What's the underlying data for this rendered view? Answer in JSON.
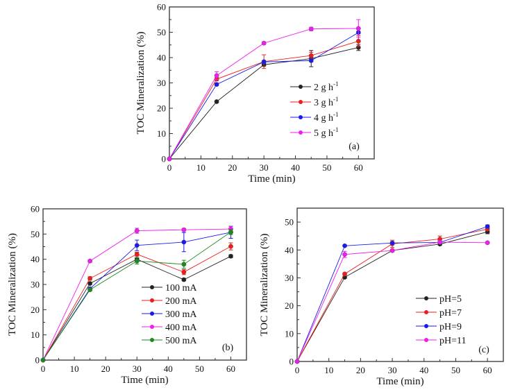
{
  "chart_data": [
    {
      "type": "line",
      "panel": "(a)",
      "title": "",
      "xlabel": "Time (min)",
      "ylabel": "TOC Mineralization (%)",
      "xlim": [
        0,
        65
      ],
      "ylim": [
        0,
        60
      ],
      "xticks": [
        0,
        10,
        20,
        30,
        40,
        50,
        60
      ],
      "yticks": [
        0,
        10,
        20,
        30,
        40,
        50,
        60
      ],
      "legend_position": "center-right",
      "x": [
        0,
        15,
        30,
        45,
        60
      ],
      "series": [
        {
          "name": "2 g h",
          "sup": "-1",
          "color": "#222222",
          "values": [
            0,
            22.6,
            37.2,
            39.6,
            44.0
          ],
          "errors": [
            0,
            0.4,
            0.5,
            3.2,
            1.2
          ]
        },
        {
          "name": "3 g h",
          "sup": "-1",
          "color": "#ee1c1c",
          "values": [
            0,
            31.5,
            38.4,
            40.8,
            46.5
          ],
          "errors": [
            0,
            0.6,
            2.7,
            1.3,
            2.2
          ]
        },
        {
          "name": "4 g h",
          "sup": "-1",
          "color": "#1a1aee",
          "values": [
            0,
            29.4,
            38.3,
            38.8,
            49.9
          ],
          "errors": [
            0,
            0.5,
            0.5,
            0.5,
            0.5
          ]
        },
        {
          "name": "5 g h",
          "sup": "-1",
          "color": "#ee1cee",
          "values": [
            0,
            32.9,
            45.7,
            51.3,
            51.5
          ],
          "errors": [
            0,
            1.5,
            0.5,
            0.7,
            3.5
          ]
        }
      ]
    },
    {
      "type": "line",
      "panel": "(b)",
      "title": "",
      "xlabel": "Time (min)",
      "ylabel": "TOC Mineralization (%)",
      "xlim": [
        0,
        65
      ],
      "ylim": [
        0,
        60
      ],
      "xticks": [
        0,
        10,
        20,
        30,
        40,
        50,
        60
      ],
      "yticks": [
        0,
        10,
        20,
        30,
        40,
        50,
        60
      ],
      "legend_position": "center-right",
      "x": [
        0,
        15,
        30,
        45,
        60
      ],
      "series": [
        {
          "name": "100 mA",
          "sup": "",
          "color": "#222222",
          "values": [
            0,
            30.4,
            40.0,
            31.9,
            41.2
          ],
          "errors": [
            0,
            0.5,
            0.6,
            0.5,
            0.6
          ]
        },
        {
          "name": "200 mA",
          "sup": "",
          "color": "#ee1c1c",
          "values": [
            0,
            32.4,
            42.0,
            34.9,
            45.1
          ],
          "errors": [
            0,
            0.7,
            0.8,
            1.0,
            1.4
          ]
        },
        {
          "name": "300 mA",
          "sup": "",
          "color": "#1a1aee",
          "values": [
            0,
            28.3,
            45.5,
            46.8,
            50.7
          ],
          "errors": [
            0,
            0.6,
            2.1,
            3.8,
            2.4
          ]
        },
        {
          "name": "400 mA",
          "sup": "",
          "color": "#ee1cee",
          "values": [
            0,
            39.3,
            51.3,
            51.7,
            52.0
          ],
          "errors": [
            0,
            0.5,
            1.0,
            0.5,
            1.0
          ]
        },
        {
          "name": "500 mA",
          "sup": "",
          "color": "#1a8a1a",
          "values": [
            0,
            27.9,
            39.3,
            38.0,
            50.8
          ],
          "errors": [
            0,
            0.5,
            1.2,
            1.6,
            1.0
          ]
        }
      ]
    },
    {
      "type": "line",
      "panel": "(c)",
      "title": "",
      "xlabel": "Time (min)",
      "ylabel": "TOC Mineralization (%)",
      "xlim": [
        0,
        65
      ],
      "ylim": [
        0,
        55
      ],
      "xticks": [
        0,
        10,
        20,
        30,
        40,
        50,
        60
      ],
      "yticks": [
        0,
        10,
        20,
        30,
        40,
        50
      ],
      "legend_position": "bottom-right",
      "x": [
        0,
        15,
        30,
        45,
        60
      ],
      "series": [
        {
          "name": "pH=5",
          "sup": "",
          "color": "#222222",
          "values": [
            0,
            30.2,
            39.8,
            42.1,
            46.5
          ],
          "errors": [
            0,
            0.4,
            0.4,
            0.4,
            0.7
          ]
        },
        {
          "name": "pH=7",
          "sup": "",
          "color": "#ee1c1c",
          "values": [
            0,
            31.4,
            42.2,
            43.9,
            47.5
          ],
          "errors": [
            0,
            0.4,
            1.3,
            1.1,
            0.6
          ]
        },
        {
          "name": "pH=9",
          "sup": "",
          "color": "#1a1aee",
          "values": [
            0,
            41.5,
            42.5,
            42.7,
            48.4
          ],
          "errors": [
            0,
            0.3,
            0.5,
            0.4,
            0.6
          ]
        },
        {
          "name": "pH=11",
          "sup": "",
          "color": "#ee1cee",
          "values": [
            0,
            38.4,
            39.8,
            42.8,
            42.6
          ],
          "errors": [
            0,
            1.1,
            0.4,
            0.5,
            0.3
          ]
        }
      ]
    }
  ]
}
